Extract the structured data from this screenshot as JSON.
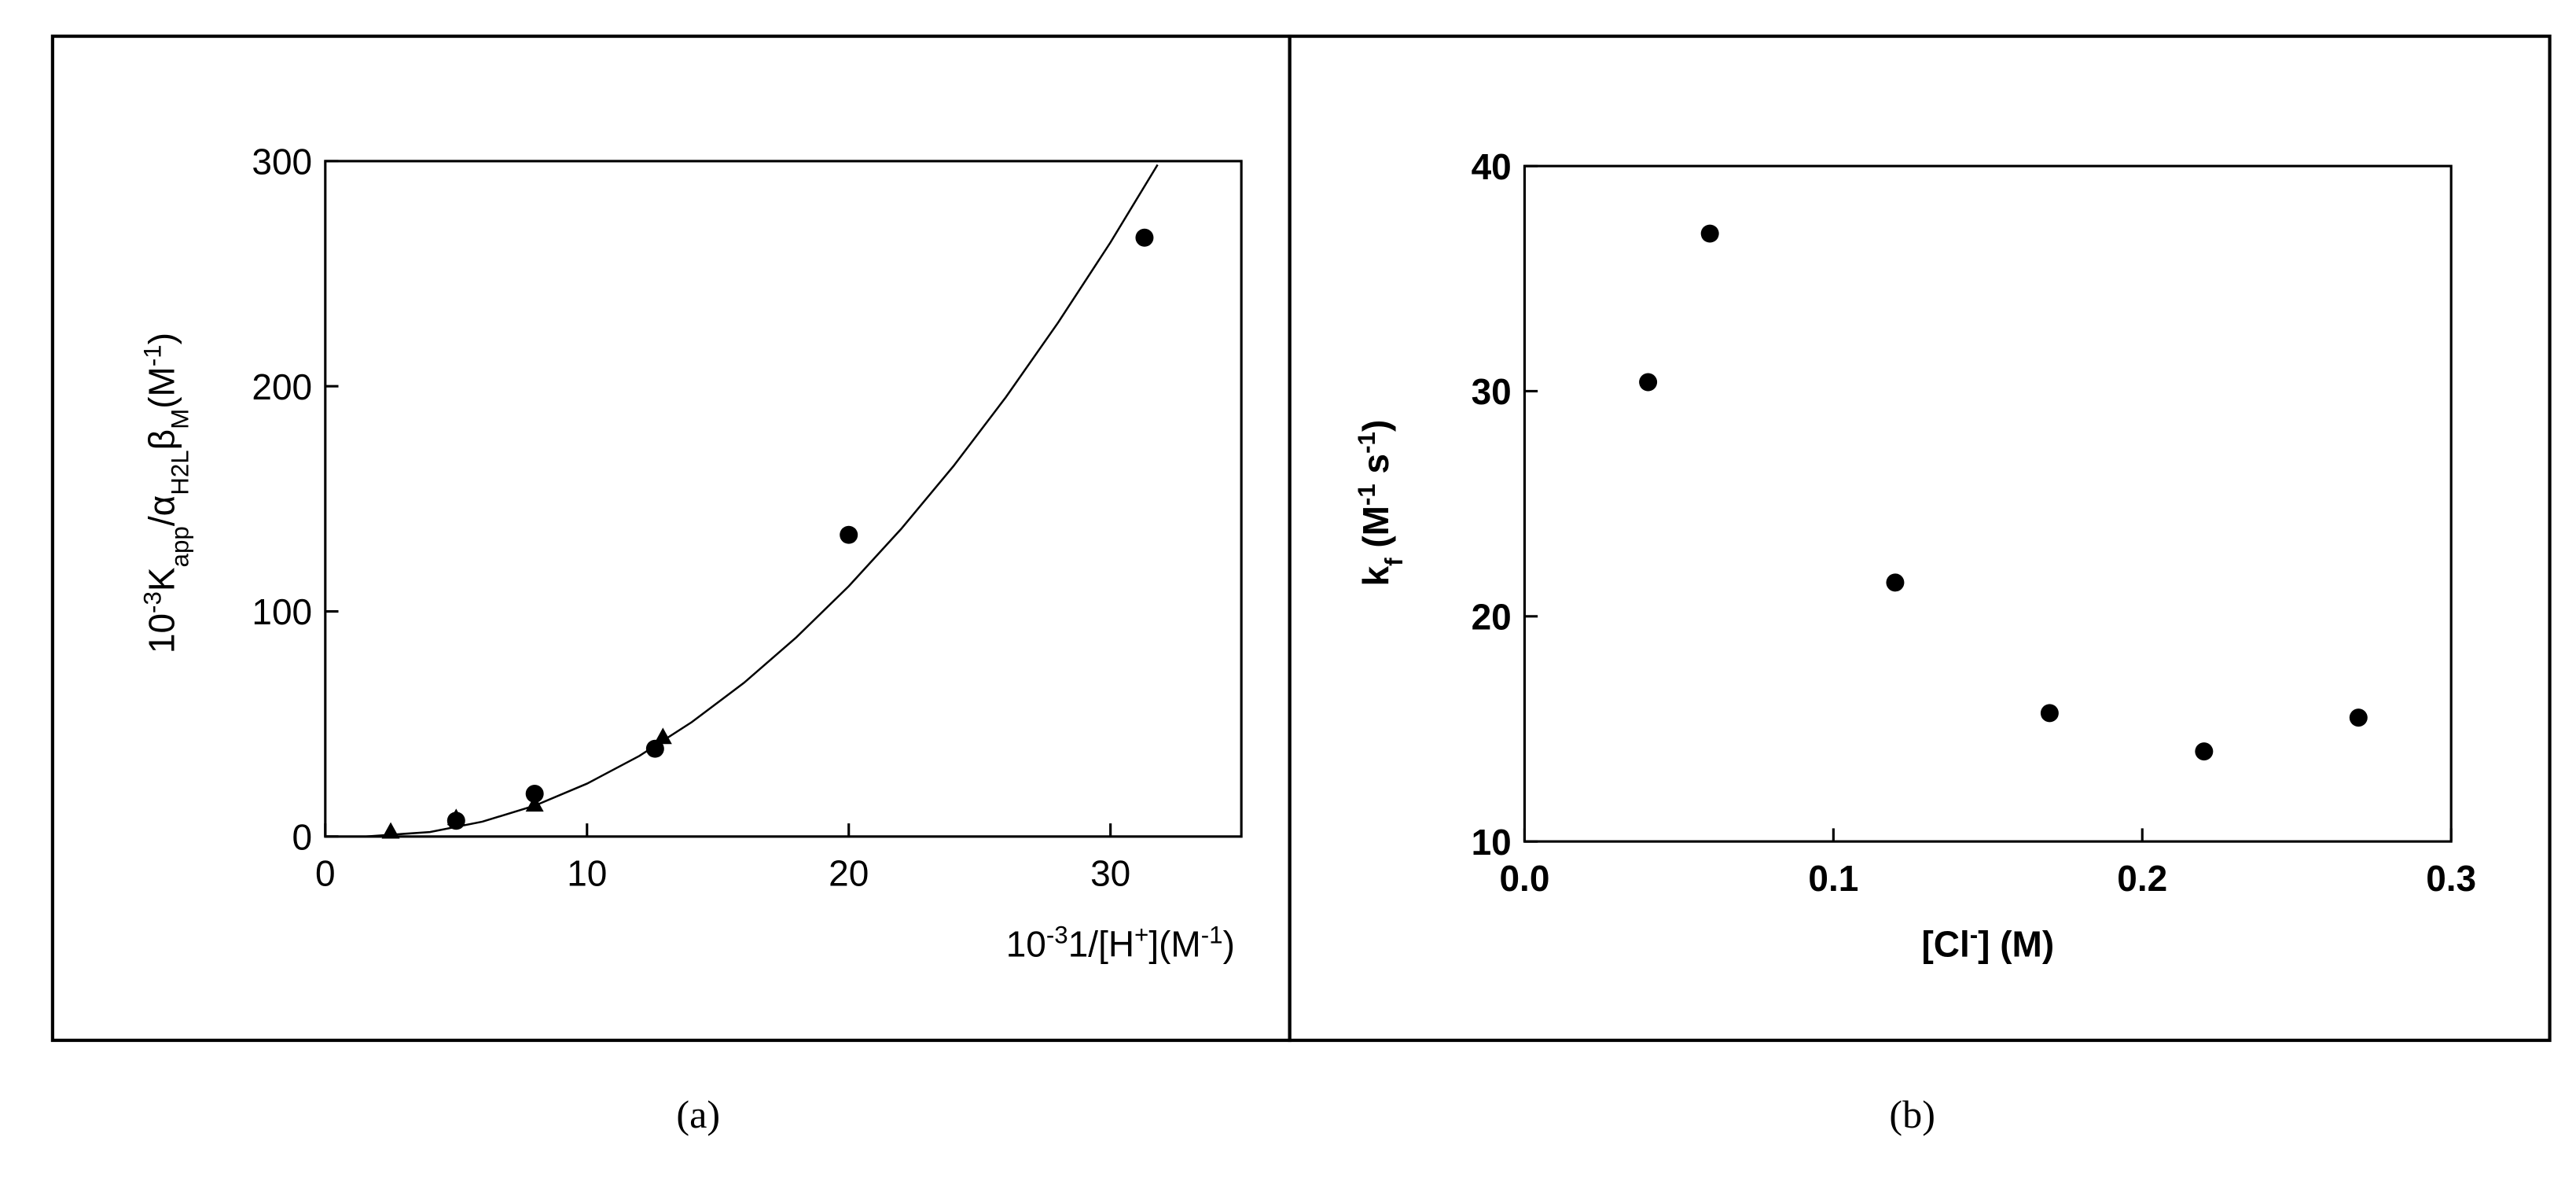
{
  "chart_data": [
    {
      "type": "scatter",
      "caption": "(a)",
      "xlabel": [
        {
          "t": "10"
        },
        {
          "t": "-3",
          "pos": "sup"
        },
        {
          "t": "1/[H"
        },
        {
          "t": "+",
          "pos": "sup"
        },
        {
          "t": "](M"
        },
        {
          "t": "-1",
          "pos": "sup"
        },
        {
          "t": ")"
        }
      ],
      "ylabel": [
        {
          "t": "10"
        },
        {
          "t": "-3",
          "pos": "sup"
        },
        {
          "t": "K"
        },
        {
          "t": "app",
          "pos": "sub"
        },
        {
          "t": "/α"
        },
        {
          "t": "H2L",
          "pos": "sub"
        },
        {
          "t": "β"
        },
        {
          "t": "M",
          "pos": "sub"
        },
        {
          "t": "(M"
        },
        {
          "t": "-1",
          "pos": "sup"
        },
        {
          "t": ")"
        }
      ],
      "xlim": [
        0,
        35
      ],
      "xticks": [
        0,
        10,
        20,
        30
      ],
      "ylim": [
        0,
        300
      ],
      "yticks": [
        0,
        100,
        200,
        300
      ],
      "series": [
        {
          "marker": "circle",
          "color": "#000000",
          "x": [
            5,
            8,
            12.6,
            20,
            31.3
          ],
          "values": [
            7,
            19,
            39,
            134,
            266
          ]
        },
        {
          "marker": "triangle",
          "color": "#000000",
          "x": [
            2.5,
            5,
            8,
            12.9
          ],
          "values": [
            2,
            8,
            14,
            44
          ]
        },
        {
          "marker": "line",
          "color": "#000000",
          "x": [
            1.5,
            4,
            6,
            8,
            10,
            12,
            14,
            16,
            18,
            20,
            22,
            24,
            26,
            28,
            30,
            31.8
          ],
          "values": [
            0,
            2.0,
            6.6,
            13.7,
            23.5,
            35.8,
            50.8,
            68.3,
            88.5,
            111.2,
            136.6,
            164.5,
            195.1,
            228.3,
            263.9,
            298.4
          ]
        }
      ]
    },
    {
      "type": "scatter",
      "caption": "(b)",
      "xlabel": [
        {
          "t": "[Cl"
        },
        {
          "t": "-",
          "pos": "sup"
        },
        {
          "t": "] (M)"
        }
      ],
      "ylabel": [
        {
          "t": "k"
        },
        {
          "t": "f",
          "pos": "sub"
        },
        {
          "t": " (M"
        },
        {
          "t": "-1",
          "pos": "sup"
        },
        {
          "t": " s"
        },
        {
          "t": "-1",
          "pos": "sup"
        },
        {
          "t": ")"
        }
      ],
      "xlim": [
        0,
        0.3
      ],
      "xticks": [
        {
          "value": 0,
          "label": "0.0"
        },
        0.1,
        0.2,
        0.3
      ],
      "ylim": [
        10,
        40
      ],
      "yticks": [
        10,
        20,
        30,
        40
      ],
      "series": [
        {
          "marker": "circle",
          "color": "#000000",
          "x": [
            0.04,
            0.06,
            0.12,
            0.17,
            0.22,
            0.27
          ],
          "values": [
            30.4,
            37,
            21.5,
            15.7,
            14,
            15.5
          ]
        }
      ]
    }
  ]
}
